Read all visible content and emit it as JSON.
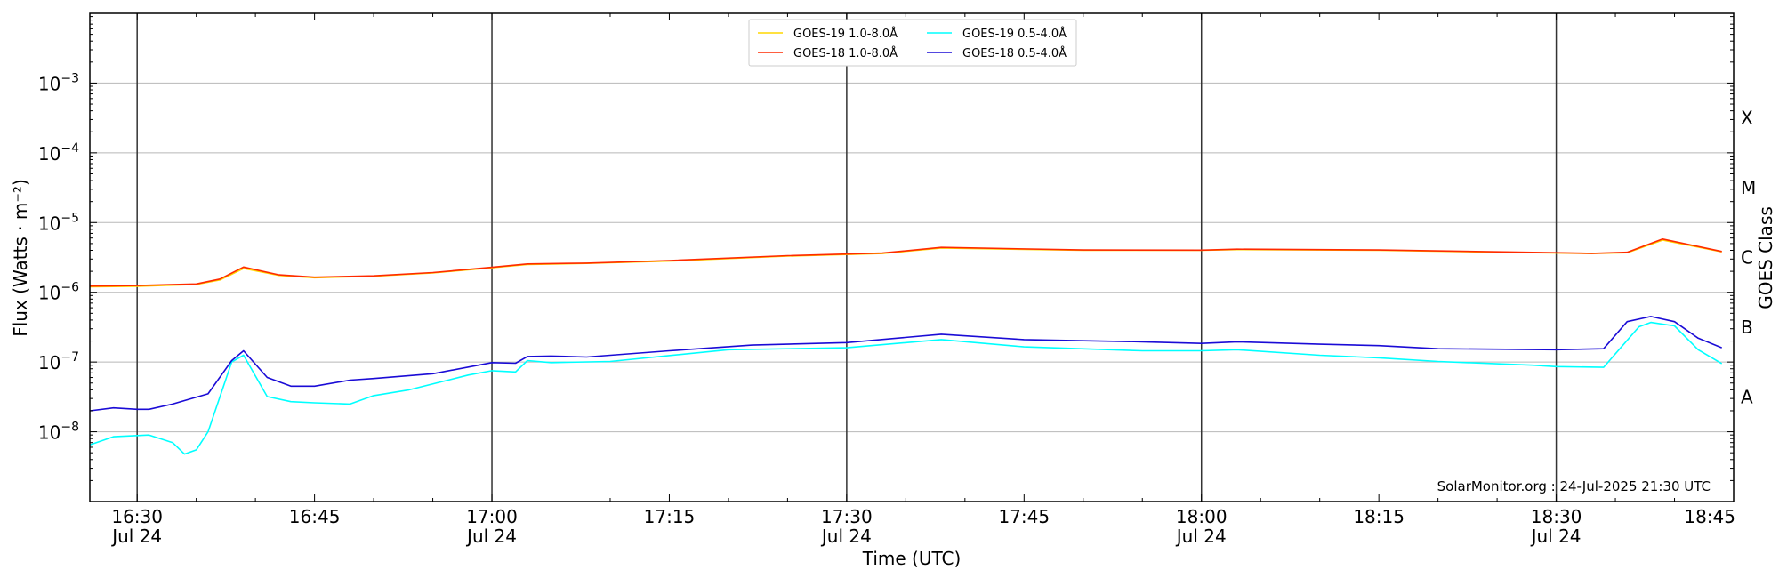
{
  "chart_data": {
    "type": "line",
    "xlabel": "Time (UTC)",
    "ylabel": "Flux (Watts · m⁻²)",
    "right_axis_label": "GOES Class",
    "y_scale": "log",
    "ylim": [
      1e-09,
      0.01
    ],
    "xlim": [
      "16:26",
      "18:45"
    ],
    "date_label": "Jul 24",
    "credit": "SolarMonitor.org : 24-Jul-2025 21:30 UTC",
    "legend_position": "top-center",
    "grid": true,
    "x_ticks": [
      {
        "time": "16:30",
        "label": "16:30",
        "date": true
      },
      {
        "time": "16:45",
        "label": "16:45",
        "date": false
      },
      {
        "time": "17:00",
        "label": "17:00",
        "date": true
      },
      {
        "time": "17:15",
        "label": "17:15",
        "date": false
      },
      {
        "time": "17:30",
        "label": "17:30",
        "date": true
      },
      {
        "time": "17:45",
        "label": "17:45",
        "date": false
      },
      {
        "time": "18:00",
        "label": "18:00",
        "date": true
      },
      {
        "time": "18:15",
        "label": "18:15",
        "date": false
      },
      {
        "time": "18:30",
        "label": "18:30",
        "date": true
      },
      {
        "time": "18:45",
        "label": "18:45",
        "date": false
      }
    ],
    "y_ticks": [
      {
        "exp": -8,
        "label": "10",
        "sup": "−8"
      },
      {
        "exp": -7,
        "label": "10",
        "sup": "−7"
      },
      {
        "exp": -6,
        "label": "10",
        "sup": "−6"
      },
      {
        "exp": -5,
        "label": "10",
        "sup": "−5"
      },
      {
        "exp": -4,
        "label": "10",
        "sup": "−4"
      },
      {
        "exp": -3,
        "label": "10",
        "sup": "−3"
      }
    ],
    "goes_classes": [
      {
        "label": "A",
        "exp": -7.5
      },
      {
        "label": "B",
        "exp": -6.5
      },
      {
        "label": "C",
        "exp": -5.5
      },
      {
        "label": "M",
        "exp": -4.5
      },
      {
        "label": "X",
        "exp": -3.5
      }
    ],
    "series": [
      {
        "name": "GOES-19 1.0-8.0Å",
        "color": "#FFD700",
        "x": [
          "16:26",
          "16:30",
          "16:35",
          "16:37",
          "16:39",
          "16:42",
          "16:45",
          "16:50",
          "16:55",
          "17:00",
          "17:03",
          "17:08",
          "17:15",
          "17:25",
          "17:33",
          "17:38",
          "17:50",
          "18:00",
          "18:03",
          "18:15",
          "18:33",
          "18:36",
          "18:39",
          "18:44"
        ],
        "values": [
          1.2e-06,
          1.22e-06,
          1.3e-06,
          1.5e-06,
          2.2e-06,
          1.75e-06,
          1.62e-06,
          1.7e-06,
          1.9e-06,
          2.25e-06,
          2.5e-06,
          2.6e-06,
          2.8e-06,
          3.3e-06,
          3.6e-06,
          4.3e-06,
          4e-06,
          4e-06,
          4.1e-06,
          4e-06,
          3.6e-06,
          3.7e-06,
          5.6e-06,
          3.8e-06
        ]
      },
      {
        "name": "GOES-18 1.0-8.0Å",
        "color": "#FF2A00",
        "x": [
          "16:26",
          "16:30",
          "16:35",
          "16:37",
          "16:39",
          "16:42",
          "16:45",
          "16:50",
          "16:55",
          "17:00",
          "17:03",
          "17:08",
          "17:15",
          "17:25",
          "17:33",
          "17:38",
          "17:50",
          "18:00",
          "18:03",
          "18:15",
          "18:33",
          "18:36",
          "18:39",
          "18:44"
        ],
        "values": [
          1.23e-06,
          1.25e-06,
          1.32e-06,
          1.55e-06,
          2.3e-06,
          1.78e-06,
          1.65e-06,
          1.72e-06,
          1.92e-06,
          2.28e-06,
          2.55e-06,
          2.62e-06,
          2.85e-06,
          3.35e-06,
          3.65e-06,
          4.4e-06,
          4.05e-06,
          4.02e-06,
          4.15e-06,
          4.05e-06,
          3.62e-06,
          3.75e-06,
          5.8e-06,
          3.85e-06
        ]
      },
      {
        "name": "GOES-19 0.5-4.0Å",
        "color": "#00FFFF",
        "x": [
          "16:26",
          "16:28",
          "16:31",
          "16:33",
          "16:34",
          "16:35",
          "16:36",
          "16:38",
          "16:39",
          "16:41",
          "16:43",
          "16:45",
          "16:48",
          "16:50",
          "16:53",
          "16:58",
          "17:00",
          "17:02",
          "17:03",
          "17:05",
          "17:10",
          "17:20",
          "17:30",
          "17:38",
          "17:45",
          "17:55",
          "18:00",
          "18:03",
          "18:10",
          "18:15",
          "18:20",
          "18:28",
          "18:30",
          "18:34",
          "18:37",
          "18:38",
          "18:40",
          "18:42",
          "18:44"
        ],
        "values": [
          6.5e-09,
          8.5e-09,
          9e-09,
          7e-09,
          4.8e-09,
          5.5e-09,
          1e-08,
          1e-07,
          1.25e-07,
          3.2e-08,
          2.7e-08,
          2.6e-08,
          2.5e-08,
          3.3e-08,
          4e-08,
          6.5e-08,
          7.5e-08,
          7.2e-08,
          1.05e-07,
          9.8e-08,
          1.02e-07,
          1.5e-07,
          1.6e-07,
          2.1e-07,
          1.65e-07,
          1.45e-07,
          1.45e-07,
          1.5e-07,
          1.25e-07,
          1.15e-07,
          1.02e-07,
          9e-08,
          8.6e-08,
          8.4e-08,
          3.2e-07,
          3.7e-07,
          3.3e-07,
          1.5e-07,
          9.5e-08
        ]
      },
      {
        "name": "GOES-18 0.5-4.0Å",
        "color": "#1A0BD6",
        "x": [
          "16:26",
          "16:28",
          "16:30",
          "16:31",
          "16:33",
          "16:34",
          "16:36",
          "16:38",
          "16:39",
          "16:41",
          "16:43",
          "16:45",
          "16:48",
          "16:50",
          "16:55",
          "17:00",
          "17:02",
          "17:03",
          "17:05",
          "17:08",
          "17:15",
          "17:22",
          "17:30",
          "17:38",
          "17:45",
          "17:55",
          "18:00",
          "18:03",
          "18:10",
          "18:15",
          "18:20",
          "18:30",
          "18:34",
          "18:36",
          "18:38",
          "18:40",
          "18:42",
          "18:44"
        ],
        "values": [
          2e-08,
          2.2e-08,
          2.1e-08,
          2.1e-08,
          2.5e-08,
          2.8e-08,
          3.5e-08,
          1.05e-07,
          1.45e-07,
          6e-08,
          4.5e-08,
          4.5e-08,
          5.5e-08,
          5.8e-08,
          6.8e-08,
          9.8e-08,
          9.6e-08,
          1.2e-07,
          1.22e-07,
          1.18e-07,
          1.45e-07,
          1.75e-07,
          1.9e-07,
          2.5e-07,
          2.1e-07,
          1.95e-07,
          1.85e-07,
          1.95e-07,
          1.8e-07,
          1.72e-07,
          1.55e-07,
          1.5e-07,
          1.55e-07,
          3.8e-07,
          4.5e-07,
          3.8e-07,
          2.2e-07,
          1.6e-07
        ]
      }
    ]
  }
}
